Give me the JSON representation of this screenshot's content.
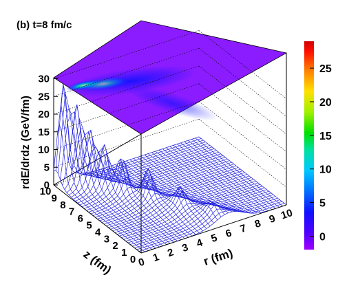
{
  "title": "(b)   t=8 fm/c",
  "chart_data": {
    "type": "surface3d",
    "title": "(b)   t=8 fm/c",
    "xlabel": "r (fm)",
    "ylabel": "z (fm)",
    "zlabel": "rdE/drdz (GeV/fm)",
    "xlim": [
      0,
      10
    ],
    "ylim": [
      0,
      10
    ],
    "zlim": [
      -2,
      32
    ],
    "x_ticks": [
      0,
      1,
      2,
      3,
      4,
      5,
      6,
      7,
      8,
      9,
      10
    ],
    "y_ticks": [
      0,
      1,
      2,
      3,
      4,
      5,
      6,
      7,
      8,
      9,
      10
    ],
    "z_ticks": [
      0,
      5,
      10,
      15,
      20,
      25,
      30
    ],
    "colorbar": {
      "ticks": [
        0,
        5,
        10,
        15,
        20,
        25
      ],
      "range": [
        -2,
        29
      ]
    },
    "peaks": [
      {
        "z_fm": 9.7,
        "r_fm": 0.5,
        "value": 26
      },
      {
        "z_fm": 9.0,
        "r_fm": 1.0,
        "value": 20
      },
      {
        "z_fm": 8.3,
        "r_fm": 1.5,
        "value": 14
      },
      {
        "z_fm": 7.5,
        "r_fm": 2.0,
        "value": 11
      },
      {
        "z_fm": 6.5,
        "r_fm": 2.6,
        "value": 9
      },
      {
        "z_fm": 5.0,
        "r_fm": 3.5,
        "value": 7
      },
      {
        "z_fm": 3.0,
        "r_fm": 4.5,
        "value": 4
      },
      {
        "z_fm": 1.0,
        "r_fm": 5.5,
        "value": 2
      }
    ],
    "grid": true,
    "palette": [
      "#6a00ff",
      "#1000ff",
      "#0080ff",
      "#00e0e0",
      "#00e060",
      "#a0f000",
      "#ffe000",
      "#ff8000",
      "#ff0000",
      "#c00000"
    ]
  }
}
